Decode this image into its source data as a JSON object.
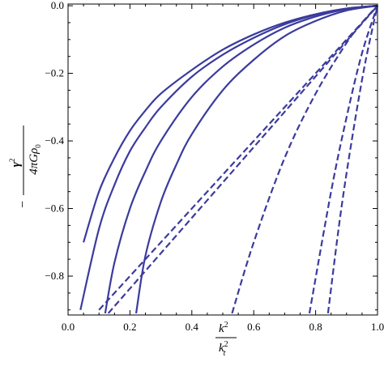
{
  "chart_data": {
    "type": "line",
    "title": "",
    "xlabel": {
      "numerator": "k",
      "numerator_sup": "2",
      "denominator": "k",
      "denominator_sub": "t",
      "denominator_sup": "2"
    },
    "ylabel": {
      "numerator": "γ",
      "numerator_sup": "2",
      "prefix": "−",
      "denominator": "4πGρ",
      "denominator_sub": "0"
    },
    "xlim": [
      0.0,
      1.0
    ],
    "ylim": [
      -0.915,
      0.005
    ],
    "xticks": [
      0.0,
      0.2,
      0.4,
      0.6,
      0.8,
      1.0
    ],
    "xtick_labels": [
      "0.0",
      "0.2",
      "0.4",
      "0.6",
      "0.8",
      "1.0"
    ],
    "yticks": [
      0.0,
      -0.2,
      -0.4,
      -0.6,
      -0.8
    ],
    "ytick_labels": [
      "0.0",
      "−0.2",
      "−0.4",
      "−0.6",
      "−0.8"
    ],
    "grid": false,
    "line_color": "#3b3b9e",
    "series": [
      {
        "style": "solid",
        "x": [
          0.05,
          0.1,
          0.15,
          0.2,
          0.25,
          0.3,
          0.4,
          0.5,
          0.6,
          0.7,
          0.8,
          0.9,
          1.0
        ],
        "y": [
          -0.7,
          -0.55,
          -0.45,
          -0.37,
          -0.31,
          -0.26,
          -0.19,
          -0.13,
          -0.085,
          -0.05,
          -0.025,
          -0.008,
          0.0
        ]
      },
      {
        "style": "solid",
        "x": [
          0.04,
          0.1,
          0.15,
          0.2,
          0.25,
          0.3,
          0.4,
          0.5,
          0.6,
          0.7,
          0.8,
          0.9,
          1.0
        ],
        "y": [
          -0.9,
          -0.66,
          -0.53,
          -0.43,
          -0.36,
          -0.3,
          -0.21,
          -0.145,
          -0.095,
          -0.055,
          -0.027,
          -0.009,
          0.0
        ]
      },
      {
        "style": "solid",
        "x": [
          0.12,
          0.15,
          0.2,
          0.25,
          0.3,
          0.4,
          0.5,
          0.6,
          0.7,
          0.8,
          0.9,
          1.0
        ],
        "y": [
          -0.91,
          -0.76,
          -0.6,
          -0.49,
          -0.4,
          -0.27,
          -0.18,
          -0.115,
          -0.065,
          -0.032,
          -0.01,
          0.0
        ]
      },
      {
        "style": "solid",
        "x": [
          0.22,
          0.25,
          0.3,
          0.35,
          0.4,
          0.5,
          0.6,
          0.7,
          0.8,
          0.9,
          1.0
        ],
        "y": [
          -0.91,
          -0.74,
          -0.58,
          -0.47,
          -0.38,
          -0.25,
          -0.16,
          -0.09,
          -0.045,
          -0.014,
          0.0
        ]
      },
      {
        "style": "dashed",
        "x": [
          0.1,
          1.0
        ],
        "y": [
          -0.9,
          0.0
        ]
      },
      {
        "style": "dashed",
        "x": [
          0.13,
          1.0
        ],
        "y": [
          -0.91,
          0.0
        ]
      },
      {
        "style": "dashed",
        "x": [
          0.53,
          0.6,
          0.7,
          0.8,
          0.9,
          0.95,
          1.0
        ],
        "y": [
          -0.91,
          -0.7,
          -0.45,
          -0.26,
          -0.11,
          -0.05,
          0.0
        ]
      },
      {
        "style": "dashed",
        "x": [
          0.78,
          0.85,
          0.9,
          0.95,
          1.0
        ],
        "y": [
          -0.91,
          -0.55,
          -0.33,
          -0.14,
          0.0
        ]
      },
      {
        "style": "dashed",
        "x": [
          0.84,
          0.88,
          0.92,
          0.96,
          1.0
        ],
        "y": [
          -0.91,
          -0.62,
          -0.38,
          -0.17,
          0.0
        ]
      }
    ]
  }
}
